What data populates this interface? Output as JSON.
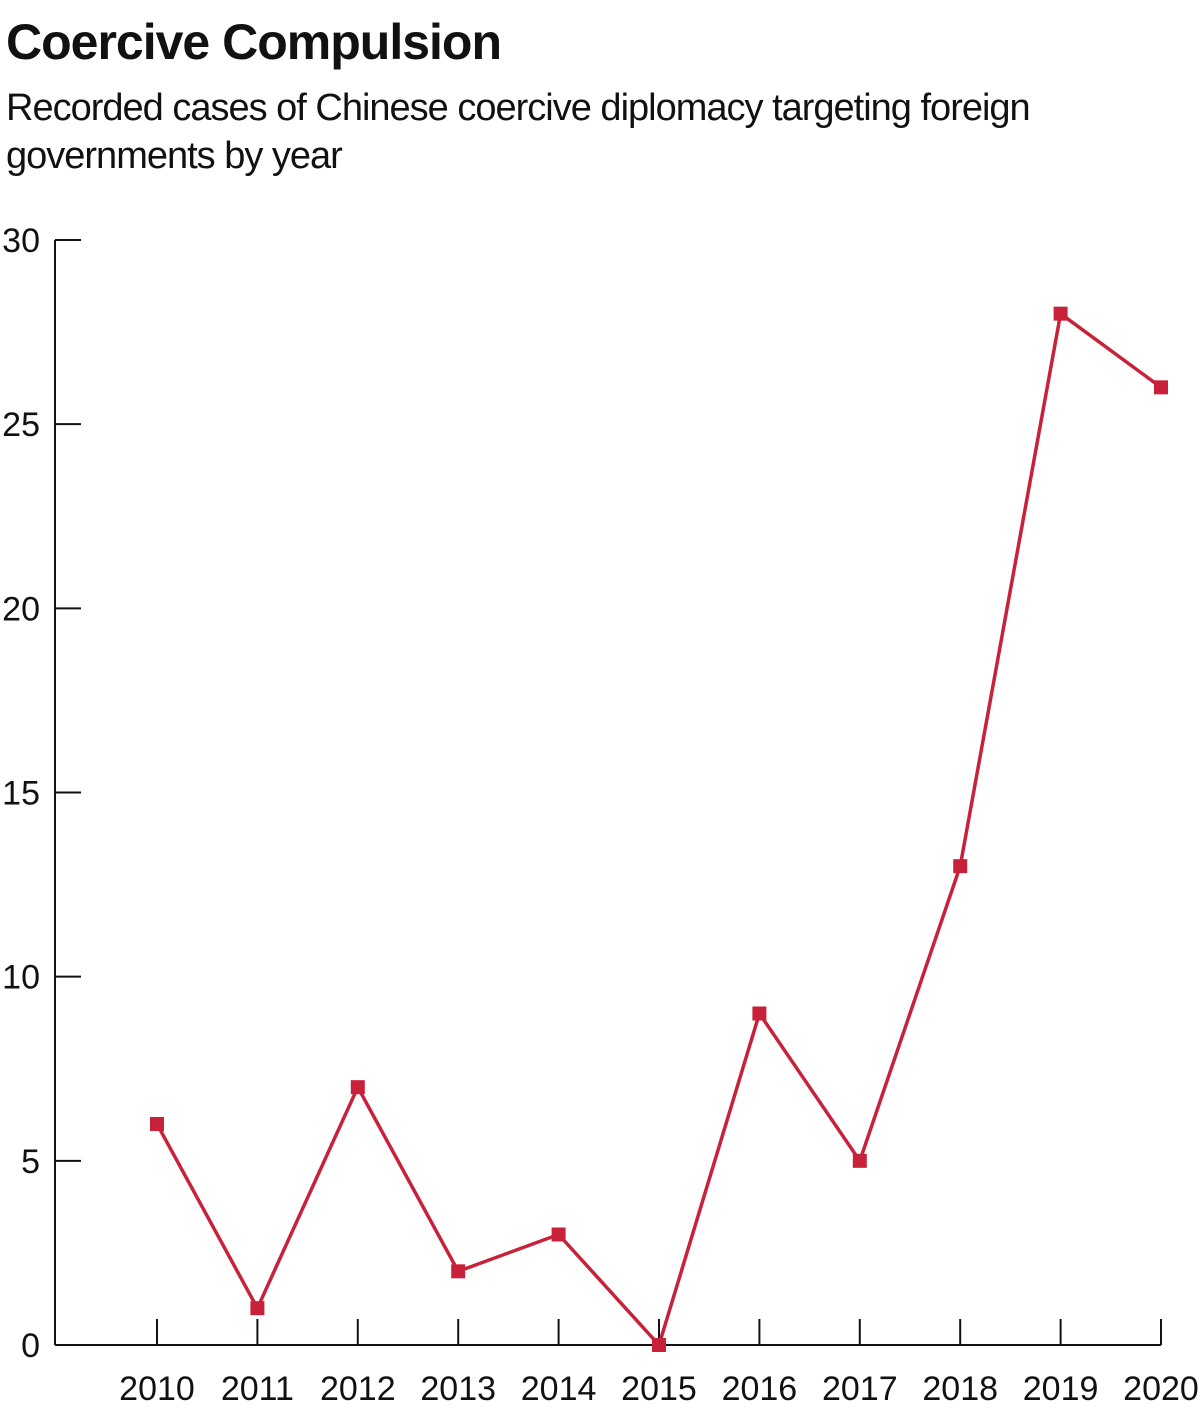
{
  "title": "Coercive Compulsion",
  "subtitle": "Recorded cases of Chinese coercive diplomacy targeting foreign governments by year",
  "colors": {
    "series": "#c8223a",
    "axis": "#111111"
  },
  "chart_data": {
    "type": "line",
    "title": "Coercive Compulsion",
    "subtitle": "Recorded cases of Chinese coercive diplomacy targeting foreign governments by year",
    "categories": [
      "2010",
      "2011",
      "2012",
      "2013",
      "2014",
      "2015",
      "2016",
      "2017",
      "2018",
      "2019",
      "2020"
    ],
    "series": [
      {
        "values": [
          6,
          1,
          7,
          2,
          3,
          0,
          9,
          5,
          13,
          28,
          26
        ]
      }
    ],
    "ylim": [
      0,
      30
    ],
    "yticks": [
      0,
      5,
      10,
      15,
      20,
      25,
      30
    ],
    "grid": false,
    "legend": "none",
    "marker": "square"
  }
}
